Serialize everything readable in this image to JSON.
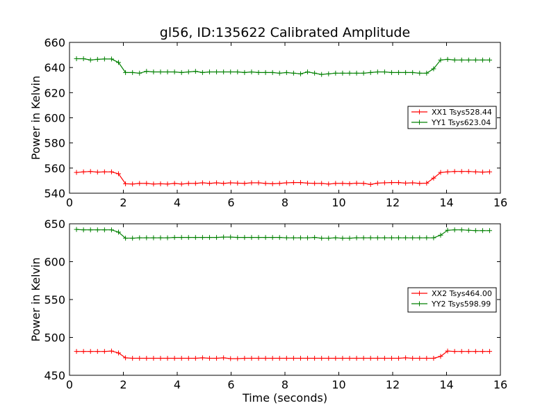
{
  "title": "gl56, ID:135622 Calibrated Amplitude",
  "colors": {
    "red": "#ff0000",
    "green": "#008000"
  },
  "chart_data": [
    {
      "type": "line",
      "title": "gl56, ID:135622 Calibrated Amplitude",
      "xlabel": "",
      "ylabel": "Power in Kelvin",
      "xlim": [
        0,
        16
      ],
      "ylim": [
        540,
        660
      ],
      "xticks": [
        0,
        2,
        4,
        6,
        8,
        10,
        12,
        14,
        16
      ],
      "yticks": [
        540,
        560,
        580,
        600,
        620,
        640,
        660
      ],
      "grid": false,
      "legend_position": "right",
      "x": [
        0.26,
        0.52,
        0.78,
        1.04,
        1.3,
        1.56,
        1.82,
        2.08,
        2.34,
        2.6,
        2.86,
        3.12,
        3.38,
        3.64,
        3.9,
        4.16,
        4.42,
        4.68,
        4.94,
        5.2,
        5.46,
        5.72,
        5.98,
        6.24,
        6.5,
        6.76,
        7.02,
        7.28,
        7.54,
        7.8,
        8.06,
        8.32,
        8.58,
        8.84,
        9.1,
        9.36,
        9.62,
        9.88,
        10.14,
        10.4,
        10.66,
        10.92,
        11.18,
        11.44,
        11.7,
        11.96,
        12.22,
        12.48,
        12.74,
        13.0,
        13.26,
        13.52,
        13.78,
        14.04,
        14.3,
        14.56,
        14.82,
        15.08,
        15.34,
        15.6
      ],
      "series": [
        {
          "name": "XX1 Tsys528.44",
          "color": "#ff0000",
          "values": [
            556.5,
            557.0,
            557.3,
            556.8,
            557.0,
            557.0,
            555.5,
            547.5,
            547.3,
            547.8,
            547.8,
            547.3,
            547.5,
            547.3,
            547.8,
            547.3,
            547.8,
            547.8,
            548.3,
            547.8,
            548.3,
            547.8,
            548.3,
            548.0,
            547.8,
            548.3,
            548.3,
            547.8,
            547.5,
            547.8,
            548.3,
            548.5,
            548.5,
            548.0,
            547.8,
            547.8,
            547.3,
            547.8,
            547.8,
            547.5,
            548.0,
            547.8,
            547.0,
            548.0,
            548.3,
            548.5,
            548.5,
            548.0,
            548.3,
            547.8,
            548.0,
            552.0,
            556.5,
            557.0,
            557.3,
            557.3,
            557.3,
            557.0,
            556.8,
            557.0
          ]
        },
        {
          "name": "YY1 Tsys623.04",
          "color": "#008000",
          "values": [
            647.0,
            647.0,
            646.0,
            646.5,
            646.8,
            646.8,
            644.0,
            636.0,
            636.0,
            635.5,
            637.0,
            636.5,
            636.5,
            636.5,
            636.5,
            636.0,
            636.5,
            637.0,
            636.0,
            636.5,
            636.5,
            636.5,
            636.5,
            636.5,
            636.0,
            636.5,
            636.0,
            636.0,
            636.0,
            635.5,
            636.0,
            635.5,
            635.0,
            636.5,
            635.5,
            634.5,
            635.0,
            635.5,
            635.5,
            635.5,
            635.5,
            635.5,
            636.0,
            636.5,
            636.5,
            636.0,
            636.0,
            636.0,
            636.0,
            635.5,
            635.5,
            639.0,
            646.0,
            646.5,
            646.0,
            646.0,
            646.0,
            646.0,
            646.0,
            646.0
          ]
        }
      ]
    },
    {
      "type": "line",
      "title": "",
      "xlabel": "Time (seconds)",
      "ylabel": "Power in Kelvin",
      "xlim": [
        0,
        16
      ],
      "ylim": [
        450,
        650
      ],
      "xticks": [
        0,
        2,
        4,
        6,
        8,
        10,
        12,
        14,
        16
      ],
      "yticks": [
        450,
        500,
        550,
        600,
        650
      ],
      "grid": false,
      "legend_position": "right",
      "x": [
        0.26,
        0.52,
        0.78,
        1.04,
        1.3,
        1.56,
        1.82,
        2.08,
        2.34,
        2.6,
        2.86,
        3.12,
        3.38,
        3.64,
        3.9,
        4.16,
        4.42,
        4.68,
        4.94,
        5.2,
        5.46,
        5.72,
        5.98,
        6.24,
        6.5,
        6.76,
        7.02,
        7.28,
        7.54,
        7.8,
        8.06,
        8.32,
        8.58,
        8.84,
        9.1,
        9.36,
        9.62,
        9.88,
        10.14,
        10.4,
        10.66,
        10.92,
        11.18,
        11.44,
        11.7,
        11.96,
        12.22,
        12.48,
        12.74,
        13.0,
        13.26,
        13.52,
        13.78,
        14.04,
        14.3,
        14.56,
        14.82,
        15.08,
        15.34,
        15.6
      ],
      "series": [
        {
          "name": "XX2 Tsys464.00",
          "color": "#ff0000",
          "values": [
            481.5,
            481.5,
            481.5,
            481.5,
            481.5,
            482.0,
            479.5,
            473.0,
            472.5,
            472.5,
            472.5,
            472.5,
            472.5,
            472.5,
            472.5,
            472.5,
            472.5,
            472.5,
            473.0,
            472.5,
            472.5,
            473.0,
            472.0,
            472.0,
            472.5,
            472.5,
            472.5,
            472.5,
            472.5,
            472.5,
            472.5,
            472.5,
            472.5,
            472.5,
            472.5,
            472.5,
            472.5,
            472.5,
            472.5,
            472.5,
            472.5,
            472.5,
            472.5,
            472.5,
            472.5,
            472.5,
            472.5,
            473.0,
            472.5,
            472.5,
            472.5,
            472.5,
            475.0,
            482.0,
            481.5,
            481.5,
            481.5,
            481.5,
            481.5,
            481.5
          ]
        },
        {
          "name": "YY2 Tsys598.99",
          "color": "#008000",
          "values": [
            642.5,
            642.0,
            642.0,
            642.0,
            642.0,
            642.0,
            639.0,
            631.0,
            631.0,
            631.5,
            631.5,
            631.5,
            631.5,
            631.5,
            632.0,
            632.0,
            632.0,
            632.0,
            632.0,
            632.0,
            632.0,
            632.5,
            632.5,
            632.0,
            632.0,
            632.0,
            632.0,
            632.0,
            632.0,
            632.0,
            631.5,
            631.5,
            631.5,
            631.5,
            632.0,
            631.0,
            631.0,
            631.5,
            631.0,
            631.0,
            631.5,
            631.5,
            631.5,
            631.5,
            631.5,
            631.5,
            631.5,
            631.5,
            631.5,
            631.5,
            631.5,
            631.5,
            635.0,
            641.5,
            642.0,
            642.0,
            641.5,
            641.0,
            641.0,
            641.0
          ]
        }
      ]
    }
  ]
}
